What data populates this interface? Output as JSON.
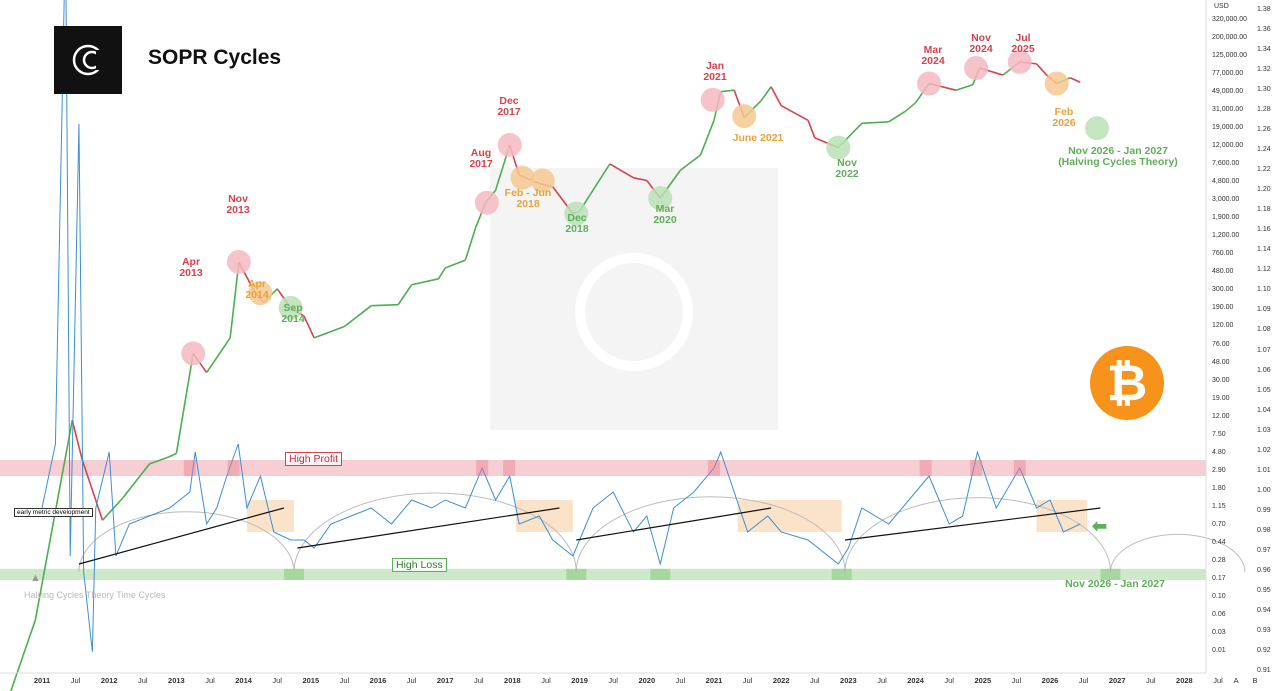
{
  "title": "SOPR Cycles",
  "colors": {
    "price_up": "#4caf50",
    "price_down": "#d9414f",
    "sopr": "#3d8fd6",
    "high_profit": "#f4b9c1",
    "high_loss": "#b9e0b4",
    "orange": "#f6c892",
    "btc": "#f7931a"
  },
  "icons": {
    "logo": "brand-logo-icon",
    "bitcoin": "bitcoin-icon"
  },
  "btc_symbol": "₿",
  "labels": {
    "high_profit": "High Profit",
    "high_loss": "High Loss",
    "early_metric": "early metric development",
    "halving_cycles": "Halving Cycles Theory Time Cycles",
    "usd": "USD"
  },
  "annotations": [
    {
      "text": "Apr\n2013",
      "color": "red"
    },
    {
      "text": "Nov\n2013",
      "color": "red"
    },
    {
      "text": "Apr\n2014",
      "color": "orange"
    },
    {
      "text": "Sep\n2014",
      "color": "green"
    },
    {
      "text": "Aug\n2017",
      "color": "red"
    },
    {
      "text": "Dec\n2017",
      "color": "red"
    },
    {
      "text": "Feb - Jun\n2018",
      "color": "orange"
    },
    {
      "text": "Dec\n2018",
      "color": "green"
    },
    {
      "text": "Mar\n2020",
      "color": "green"
    },
    {
      "text": "Jan\n2021",
      "color": "red"
    },
    {
      "text": "June 2021",
      "color": "orange"
    },
    {
      "text": "Nov\n2022",
      "color": "green"
    },
    {
      "text": "Mar\n2024",
      "color": "red"
    },
    {
      "text": "Nov\n2024",
      "color": "red"
    },
    {
      "text": "Jul\n2025",
      "color": "red"
    },
    {
      "text": "Feb\n2026",
      "color": "orange"
    },
    {
      "text": "Nov 2026 - Jan 2027\n(Halving Cycles Theory)",
      "color": "green"
    },
    {
      "text": "Nov 2026 - Jan 2027",
      "color": "green"
    }
  ],
  "chart_data": {
    "type": "line",
    "title": "SOPR Cycles",
    "price_axis": {
      "scale": "log",
      "unit": "USD",
      "ticks": [
        "320,000.00",
        "200,000.00",
        "125,000.00",
        "77,000.00",
        "49,000.00",
        "31,000.00",
        "19,000.00",
        "12,000.00",
        "7,600.00",
        "4,800.00",
        "3,000.00",
        "1,900.00",
        "1,200.00",
        "760.00",
        "480.00",
        "300.00",
        "190.00",
        "120.00",
        "76.00",
        "48.00",
        "30.00",
        "19.00",
        "12.00",
        "7.50",
        "4.80",
        "2.90",
        "1.80",
        "1.15",
        "0.70",
        "0.44",
        "0.28",
        "0.17",
        "0.10",
        "0.06",
        "0.03",
        "0.01"
      ]
    },
    "sopr_axis": {
      "ticks": [
        "1.38",
        "1.36",
        "1.34",
        "1.32",
        "1.30",
        "1.28",
        "1.26",
        "1.24",
        "1.22",
        "1.20",
        "1.18",
        "1.16",
        "1.14",
        "1.12",
        "1.10",
        "1.09",
        "1.08",
        "1.07",
        "1.06",
        "1.05",
        "1.04",
        "1.03",
        "1.02",
        "1.01",
        "1.00",
        "0.99",
        "0.98",
        "0.97",
        "0.96",
        "0.95",
        "0.94",
        "0.93",
        "0.92",
        "0.91"
      ]
    },
    "x_ticks": [
      {
        "label": "2011",
        "year": true,
        "t": 2011.0
      },
      {
        "label": "Jul",
        "t": 2011.5
      },
      {
        "label": "2012",
        "year": true,
        "t": 2012.0
      },
      {
        "label": "Jul",
        "t": 2012.5
      },
      {
        "label": "2013",
        "year": true,
        "t": 2013.0
      },
      {
        "label": "Jul",
        "t": 2013.5
      },
      {
        "label": "2014",
        "year": true,
        "t": 2014.0
      },
      {
        "label": "Jul",
        "t": 2014.5
      },
      {
        "label": "2015",
        "year": true,
        "t": 2015.0
      },
      {
        "label": "Jul",
        "t": 2015.5
      },
      {
        "label": "2016",
        "year": true,
        "t": 2016.0
      },
      {
        "label": "Jul",
        "t": 2016.5
      },
      {
        "label": "2017",
        "year": true,
        "t": 2017.0
      },
      {
        "label": "Jul",
        "t": 2017.5
      },
      {
        "label": "2018",
        "year": true,
        "t": 2018.0
      },
      {
        "label": "Jul",
        "t": 2018.5
      },
      {
        "label": "2019",
        "year": true,
        "t": 2019.0
      },
      {
        "label": "Jul",
        "t": 2019.5
      },
      {
        "label": "2020",
        "year": true,
        "t": 2020.0
      },
      {
        "label": "Jul",
        "t": 2020.5
      },
      {
        "label": "2021",
        "year": true,
        "t": 2021.0
      },
      {
        "label": "Jul",
        "t": 2021.5
      },
      {
        "label": "2022",
        "year": true,
        "t": 2022.0
      },
      {
        "label": "Jul",
        "t": 2022.5
      },
      {
        "label": "2023",
        "year": true,
        "t": 2023.0
      },
      {
        "label": "Jul",
        "t": 2023.5
      },
      {
        "label": "2024",
        "year": true,
        "t": 2024.0
      },
      {
        "label": "Jul",
        "t": 2024.5
      },
      {
        "label": "2025",
        "year": true,
        "t": 2025.0
      },
      {
        "label": "Jul",
        "t": 2025.5
      },
      {
        "label": "2026",
        "year": true,
        "t": 2026.0
      },
      {
        "label": "Jul",
        "t": 2026.5
      },
      {
        "label": "2027",
        "year": true,
        "t": 2027.0
      },
      {
        "label": "Jul",
        "t": 2027.5
      },
      {
        "label": "2028",
        "year": true,
        "t": 2028.0
      },
      {
        "label": "Jul",
        "t": 2028.5
      },
      {
        "label": "A",
        "t": 2028.77
      },
      {
        "label": "B",
        "t": 2029.05
      }
    ],
    "price_series": [
      [
        2010.5,
        0.05
      ],
      [
        2010.9,
        0.3
      ],
      [
        2011.45,
        30
      ],
      [
        2011.6,
        12
      ],
      [
        2011.9,
        3
      ],
      [
        2012.2,
        5
      ],
      [
        2012.6,
        11
      ],
      [
        2012.9,
        13
      ],
      [
        2013.0,
        14
      ],
      [
        2013.25,
        140
      ],
      [
        2013.45,
        90
      ],
      [
        2013.8,
        200
      ],
      [
        2013.93,
        1150
      ],
      [
        2014.15,
        600
      ],
      [
        2014.3,
        450
      ],
      [
        2014.5,
        620
      ],
      [
        2014.7,
        400
      ],
      [
        2014.9,
        330
      ],
      [
        2015.05,
        200
      ],
      [
        2015.5,
        260
      ],
      [
        2015.9,
        420
      ],
      [
        2016.3,
        430
      ],
      [
        2016.5,
        680
      ],
      [
        2016.9,
        780
      ],
      [
        2017.0,
        1000
      ],
      [
        2017.3,
        1200
      ],
      [
        2017.45,
        2500
      ],
      [
        2017.6,
        4500
      ],
      [
        2017.75,
        6000
      ],
      [
        2017.96,
        17000
      ],
      [
        2018.1,
        8500
      ],
      [
        2018.4,
        7000
      ],
      [
        2018.6,
        6500
      ],
      [
        2018.9,
        3500
      ],
      [
        2019.0,
        3700
      ],
      [
        2019.45,
        11000
      ],
      [
        2019.8,
        8000
      ],
      [
        2020.0,
        7500
      ],
      [
        2020.2,
        5000
      ],
      [
        2020.5,
        9500
      ],
      [
        2020.8,
        13500
      ],
      [
        2021.0,
        30000
      ],
      [
        2021.1,
        58000
      ],
      [
        2021.3,
        60000
      ],
      [
        2021.45,
        32000
      ],
      [
        2021.7,
        47000
      ],
      [
        2021.85,
        65000
      ],
      [
        2022.0,
        42000
      ],
      [
        2022.4,
        30000
      ],
      [
        2022.5,
        20000
      ],
      [
        2022.85,
        16000
      ],
      [
        2023.2,
        28000
      ],
      [
        2023.6,
        29000
      ],
      [
        2023.85,
        37000
      ],
      [
        2024.0,
        45000
      ],
      [
        2024.2,
        70000
      ],
      [
        2024.6,
        60000
      ],
      [
        2024.85,
        68000
      ],
      [
        2024.95,
        100000
      ],
      [
        2025.3,
        85000
      ],
      [
        2025.55,
        115000
      ],
      [
        2025.8,
        110000
      ],
      [
        2025.95,
        85000
      ],
      [
        2026.1,
        70000
      ],
      [
        2026.3,
        80000
      ],
      [
        2026.45,
        72000
      ]
    ],
    "sopr_series": [
      [
        2011.0,
        1.01
      ],
      [
        2011.2,
        1.05
      ],
      [
        2011.35,
        1.37
      ],
      [
        2011.42,
        0.98
      ],
      [
        2011.55,
        1.25
      ],
      [
        2011.62,
        0.97
      ],
      [
        2011.75,
        0.92
      ],
      [
        2011.8,
        1.01
      ],
      [
        2012.0,
        1.045
      ],
      [
        2012.1,
        0.98
      ],
      [
        2012.3,
        1.0
      ],
      [
        2012.6,
        1.005
      ],
      [
        2012.9,
        1.01
      ],
      [
        2013.2,
        1.02
      ],
      [
        2013.28,
        1.045
      ],
      [
        2013.45,
        1.0
      ],
      [
        2013.6,
        1.01
      ],
      [
        2013.75,
        1.03
      ],
      [
        2013.92,
        1.05
      ],
      [
        2014.05,
        1.01
      ],
      [
        2014.25,
        1.03
      ],
      [
        2014.45,
        0.995
      ],
      [
        2014.7,
        0.99
      ],
      [
        2014.9,
        0.99
      ],
      [
        2015.05,
        0.985
      ],
      [
        2015.3,
        1.0
      ],
      [
        2015.6,
        1.005
      ],
      [
        2015.9,
        1.01
      ],
      [
        2016.2,
        1.0
      ],
      [
        2016.5,
        1.015
      ],
      [
        2016.8,
        1.01
      ],
      [
        2017.0,
        1.015
      ],
      [
        2017.3,
        1.01
      ],
      [
        2017.55,
        1.035
      ],
      [
        2017.75,
        1.015
      ],
      [
        2017.96,
        1.03
      ],
      [
        2018.1,
        1.0
      ],
      [
        2018.4,
        1.005
      ],
      [
        2018.6,
        0.99
      ],
      [
        2018.9,
        0.98
      ],
      [
        2019.0,
        0.99
      ],
      [
        2019.2,
        1.01
      ],
      [
        2019.5,
        1.02
      ],
      [
        2019.8,
        0.995
      ],
      [
        2020.0,
        1.005
      ],
      [
        2020.2,
        0.975
      ],
      [
        2020.4,
        1.01
      ],
      [
        2020.7,
        1.02
      ],
      [
        2021.0,
        1.035
      ],
      [
        2021.1,
        1.045
      ],
      [
        2021.3,
        1.02
      ],
      [
        2021.5,
        0.995
      ],
      [
        2021.8,
        1.005
      ],
      [
        2022.0,
        0.995
      ],
      [
        2022.4,
        0.99
      ],
      [
        2022.85,
        0.975
      ],
      [
        2023.0,
        0.985
      ],
      [
        2023.2,
        1.01
      ],
      [
        2023.6,
        1.0
      ],
      [
        2023.9,
        1.015
      ],
      [
        2024.2,
        1.03
      ],
      [
        2024.5,
        1.0
      ],
      [
        2024.7,
        1.005
      ],
      [
        2024.92,
        1.045
      ],
      [
        2025.2,
        1.01
      ],
      [
        2025.55,
        1.035
      ],
      [
        2025.8,
        1.01
      ],
      [
        2026.0,
        1.015
      ],
      [
        2026.2,
        0.995
      ],
      [
        2026.45,
        1.0
      ]
    ],
    "zones": {
      "high_profit_band": [
        1.04,
        1.03
      ],
      "high_loss_band": [
        0.972,
        0.965
      ]
    },
    "cycle_arcs": [
      [
        2011.55,
        2014.75
      ],
      [
        2014.75,
        2018.95
      ],
      [
        2018.95,
        2022.95
      ],
      [
        2022.95,
        2026.9
      ],
      [
        2026.9,
        2028.9
      ]
    ],
    "trendlines": [
      [
        [
          2011.55,
          0.975
        ],
        [
          2014.6,
          1.01
        ]
      ],
      [
        [
          2014.8,
          0.985
        ],
        [
          2018.7,
          1.01
        ]
      ],
      [
        [
          2018.95,
          0.99
        ],
        [
          2021.85,
          1.01
        ]
      ],
      [
        [
          2022.95,
          0.99
        ],
        [
          2026.75,
          1.01
        ]
      ]
    ]
  }
}
